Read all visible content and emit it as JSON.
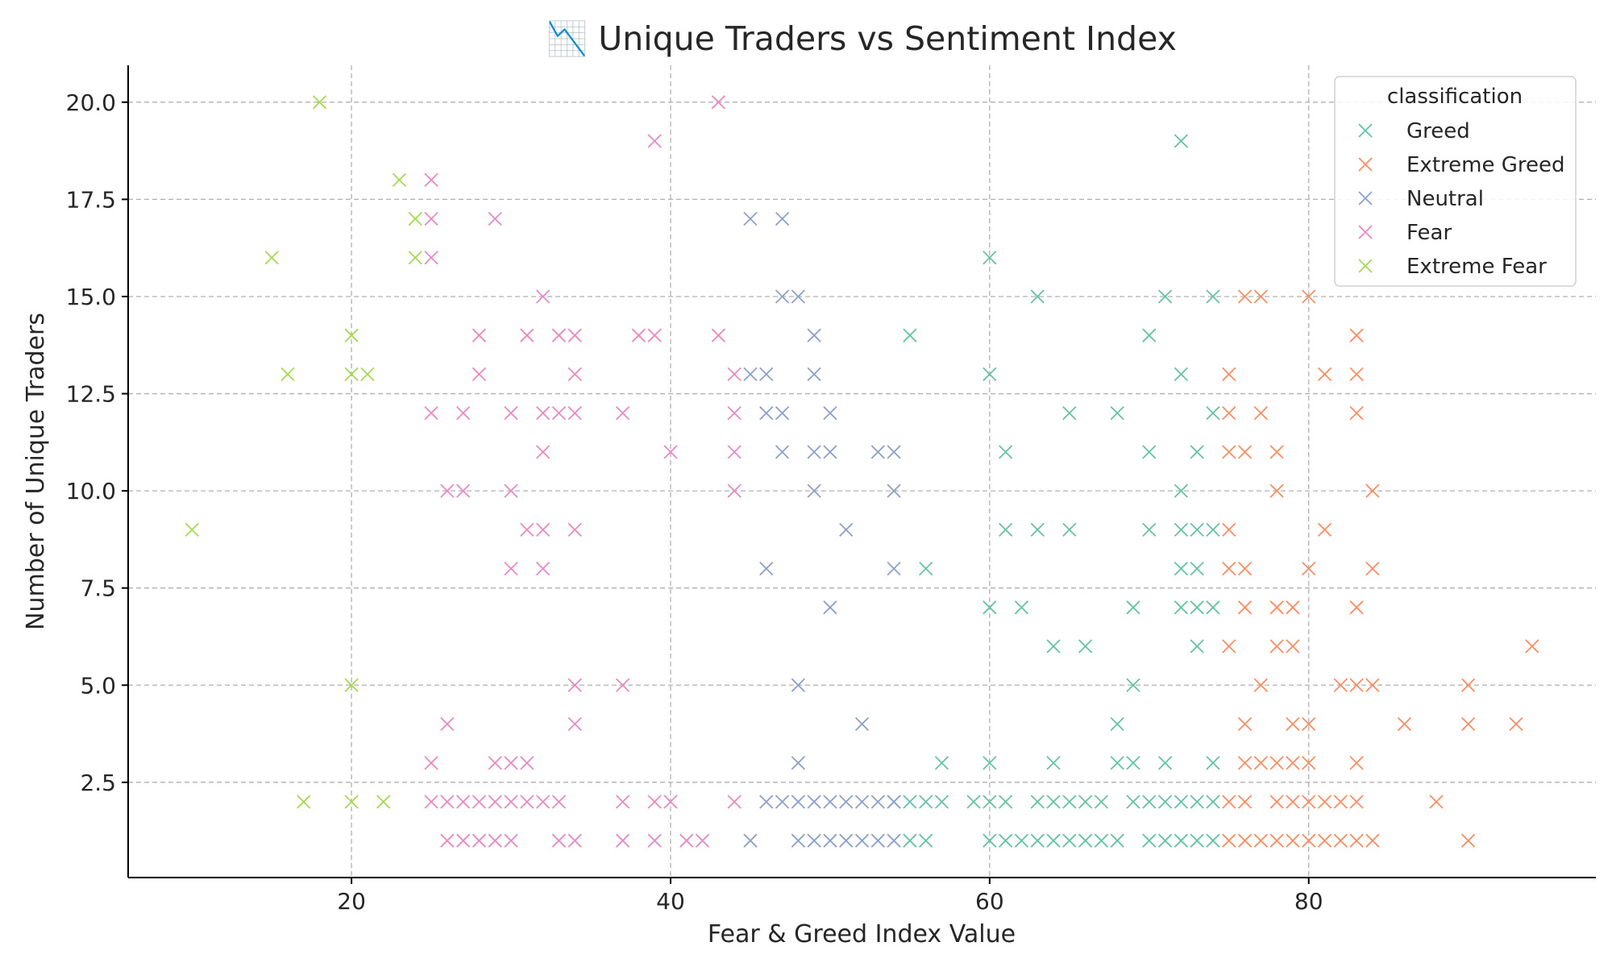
{
  "chart_data": {
    "type": "scatter",
    "title": "📉 Unique Traders vs Sentiment Index",
    "xlabel": "Fear & Greed Index Value",
    "ylabel": "Number of Unique Traders",
    "xlim": [
      6,
      98
    ],
    "ylim": [
      0.05,
      20.95
    ],
    "x_ticks": [
      20,
      40,
      60,
      80
    ],
    "x_tick_labels": [
      "20",
      "40",
      "60",
      "80"
    ],
    "y_ticks": [
      2.5,
      5.0,
      7.5,
      10.0,
      12.5,
      15.0,
      17.5,
      20.0
    ],
    "y_tick_labels": [
      "2.5",
      "5.0",
      "7.5",
      "10.0",
      "12.5",
      "15.0",
      "17.5",
      "20.0"
    ],
    "grid": true,
    "marker": "x",
    "legend": {
      "title": "classification",
      "position": "top-right"
    },
    "series": [
      {
        "name": "Greed",
        "color": "#66c2a5",
        "points": [
          [
            72,
            19
          ],
          [
            60,
            16
          ],
          [
            63,
            15
          ],
          [
            71,
            15
          ],
          [
            74,
            15
          ],
          [
            55,
            14
          ],
          [
            70,
            14
          ],
          [
            60,
            13
          ],
          [
            72,
            13
          ],
          [
            65,
            12
          ],
          [
            68,
            12
          ],
          [
            74,
            12
          ],
          [
            61,
            11
          ],
          [
            70,
            11
          ],
          [
            73,
            11
          ],
          [
            72,
            10
          ],
          [
            61,
            9
          ],
          [
            63,
            9
          ],
          [
            65,
            9
          ],
          [
            70,
            9
          ],
          [
            72,
            9
          ],
          [
            73,
            9
          ],
          [
            74,
            9
          ],
          [
            56,
            8
          ],
          [
            72,
            8
          ],
          [
            73,
            8
          ],
          [
            60,
            7
          ],
          [
            62,
            7
          ],
          [
            69,
            7
          ],
          [
            72,
            7
          ],
          [
            73,
            7
          ],
          [
            74,
            7
          ],
          [
            64,
            6
          ],
          [
            66,
            6
          ],
          [
            73,
            6
          ],
          [
            69,
            5
          ],
          [
            68,
            4
          ],
          [
            57,
            3
          ],
          [
            60,
            3
          ],
          [
            64,
            3
          ],
          [
            68,
            3
          ],
          [
            69,
            3
          ],
          [
            71,
            3
          ],
          [
            74,
            3
          ],
          [
            54,
            2
          ],
          [
            55,
            2
          ],
          [
            56,
            2
          ],
          [
            57,
            2
          ],
          [
            59,
            2
          ],
          [
            60,
            2
          ],
          [
            61,
            2
          ],
          [
            63,
            2
          ],
          [
            64,
            2
          ],
          [
            65,
            2
          ],
          [
            66,
            2
          ],
          [
            67,
            2
          ],
          [
            69,
            2
          ],
          [
            70,
            2
          ],
          [
            71,
            2
          ],
          [
            72,
            2
          ],
          [
            73,
            2
          ],
          [
            74,
            2
          ],
          [
            55,
            1
          ],
          [
            56,
            1
          ],
          [
            60,
            1
          ],
          [
            61,
            1
          ],
          [
            62,
            1
          ],
          [
            63,
            1
          ],
          [
            64,
            1
          ],
          [
            65,
            1
          ],
          [
            66,
            1
          ],
          [
            67,
            1
          ],
          [
            68,
            1
          ],
          [
            70,
            1
          ],
          [
            71,
            1
          ],
          [
            72,
            1
          ],
          [
            73,
            1
          ],
          [
            74,
            1
          ]
        ]
      },
      {
        "name": "Extreme Greed",
        "color": "#fc8d62",
        "points": [
          [
            76,
            15
          ],
          [
            77,
            15
          ],
          [
            80,
            15
          ],
          [
            83,
            14
          ],
          [
            75,
            13
          ],
          [
            81,
            13
          ],
          [
            83,
            13
          ],
          [
            75,
            12
          ],
          [
            77,
            12
          ],
          [
            83,
            12
          ],
          [
            75,
            11
          ],
          [
            76,
            11
          ],
          [
            78,
            11
          ],
          [
            78,
            10
          ],
          [
            84,
            10
          ],
          [
            75,
            9
          ],
          [
            81,
            9
          ],
          [
            75,
            8
          ],
          [
            76,
            8
          ],
          [
            80,
            8
          ],
          [
            84,
            8
          ],
          [
            76,
            7
          ],
          [
            78,
            7
          ],
          [
            79,
            7
          ],
          [
            83,
            7
          ],
          [
            94,
            6
          ],
          [
            75,
            6
          ],
          [
            78,
            6
          ],
          [
            79,
            6
          ],
          [
            77,
            5
          ],
          [
            82,
            5
          ],
          [
            83,
            5
          ],
          [
            84,
            5
          ],
          [
            90,
            5
          ],
          [
            76,
            4
          ],
          [
            79,
            4
          ],
          [
            80,
            4
          ],
          [
            86,
            4
          ],
          [
            90,
            4
          ],
          [
            93,
            4
          ],
          [
            76,
            3
          ],
          [
            77,
            3
          ],
          [
            78,
            3
          ],
          [
            79,
            3
          ],
          [
            80,
            3
          ],
          [
            83,
            3
          ],
          [
            75,
            2
          ],
          [
            76,
            2
          ],
          [
            78,
            2
          ],
          [
            79,
            2
          ],
          [
            80,
            2
          ],
          [
            81,
            2
          ],
          [
            82,
            2
          ],
          [
            83,
            2
          ],
          [
            88,
            2
          ],
          [
            75,
            1
          ],
          [
            76,
            1
          ],
          [
            77,
            1
          ],
          [
            78,
            1
          ],
          [
            79,
            1
          ],
          [
            80,
            1
          ],
          [
            81,
            1
          ],
          [
            82,
            1
          ],
          [
            83,
            1
          ],
          [
            84,
            1
          ],
          [
            90,
            1
          ]
        ]
      },
      {
        "name": "Neutral",
        "color": "#8da0cb",
        "points": [
          [
            45,
            17
          ],
          [
            47,
            17
          ],
          [
            47,
            15
          ],
          [
            48,
            15
          ],
          [
            49,
            14
          ],
          [
            45,
            13
          ],
          [
            46,
            13
          ],
          [
            49,
            13
          ],
          [
            46,
            12
          ],
          [
            47,
            12
          ],
          [
            50,
            12
          ],
          [
            47,
            11
          ],
          [
            49,
            11
          ],
          [
            50,
            11
          ],
          [
            53,
            11
          ],
          [
            54,
            11
          ],
          [
            49,
            10
          ],
          [
            54,
            10
          ],
          [
            51,
            9
          ],
          [
            46,
            8
          ],
          [
            54,
            8
          ],
          [
            50,
            7
          ],
          [
            48,
            5
          ],
          [
            52,
            4
          ],
          [
            48,
            3
          ],
          [
            46,
            2
          ],
          [
            47,
            2
          ],
          [
            48,
            2
          ],
          [
            49,
            2
          ],
          [
            50,
            2
          ],
          [
            51,
            2
          ],
          [
            52,
            2
          ],
          [
            53,
            2
          ],
          [
            54,
            2
          ],
          [
            45,
            1
          ],
          [
            48,
            1
          ],
          [
            49,
            1
          ],
          [
            50,
            1
          ],
          [
            51,
            1
          ],
          [
            52,
            1
          ],
          [
            53,
            1
          ],
          [
            54,
            1
          ]
        ]
      },
      {
        "name": "Fear",
        "color": "#e78ac3",
        "points": [
          [
            43,
            20
          ],
          [
            39,
            19
          ],
          [
            25,
            18
          ],
          [
            25,
            17
          ],
          [
            29,
            17
          ],
          [
            25,
            16
          ],
          [
            32,
            15
          ],
          [
            28,
            14
          ],
          [
            31,
            14
          ],
          [
            33,
            14
          ],
          [
            34,
            14
          ],
          [
            38,
            14
          ],
          [
            39,
            14
          ],
          [
            43,
            14
          ],
          [
            28,
            13
          ],
          [
            34,
            13
          ],
          [
            44,
            13
          ],
          [
            25,
            12
          ],
          [
            27,
            12
          ],
          [
            30,
            12
          ],
          [
            32,
            12
          ],
          [
            33,
            12
          ],
          [
            34,
            12
          ],
          [
            37,
            12
          ],
          [
            44,
            12
          ],
          [
            32,
            11
          ],
          [
            40,
            11
          ],
          [
            44,
            11
          ],
          [
            26,
            10
          ],
          [
            27,
            10
          ],
          [
            30,
            10
          ],
          [
            44,
            10
          ],
          [
            31,
            9
          ],
          [
            32,
            9
          ],
          [
            34,
            9
          ],
          [
            30,
            8
          ],
          [
            32,
            8
          ],
          [
            34,
            5
          ],
          [
            37,
            5
          ],
          [
            26,
            4
          ],
          [
            34,
            4
          ],
          [
            25,
            3
          ],
          [
            29,
            3
          ],
          [
            30,
            3
          ],
          [
            31,
            3
          ],
          [
            25,
            2
          ],
          [
            26,
            2
          ],
          [
            27,
            2
          ],
          [
            28,
            2
          ],
          [
            29,
            2
          ],
          [
            30,
            2
          ],
          [
            31,
            2
          ],
          [
            32,
            2
          ],
          [
            33,
            2
          ],
          [
            37,
            2
          ],
          [
            39,
            2
          ],
          [
            40,
            2
          ],
          [
            44,
            2
          ],
          [
            26,
            1
          ],
          [
            27,
            1
          ],
          [
            28,
            1
          ],
          [
            29,
            1
          ],
          [
            30,
            1
          ],
          [
            33,
            1
          ],
          [
            34,
            1
          ],
          [
            37,
            1
          ],
          [
            39,
            1
          ],
          [
            41,
            1
          ],
          [
            42,
            1
          ]
        ]
      },
      {
        "name": "Extreme Fear",
        "color": "#a6d854",
        "points": [
          [
            18,
            20
          ],
          [
            23,
            18
          ],
          [
            24,
            17
          ],
          [
            15,
            16
          ],
          [
            24,
            16
          ],
          [
            20,
            14
          ],
          [
            16,
            13
          ],
          [
            20,
            13
          ],
          [
            21,
            13
          ],
          [
            10,
            9
          ],
          [
            20,
            5
          ],
          [
            17,
            2
          ],
          [
            20,
            2
          ],
          [
            22,
            2
          ]
        ]
      }
    ]
  }
}
